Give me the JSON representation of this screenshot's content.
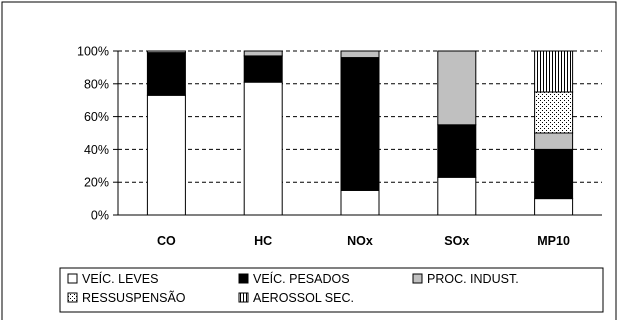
{
  "chart_data": {
    "type": "bar",
    "stacked": true,
    "percent": true,
    "categories": [
      "CO",
      "HC",
      "NOx",
      "SOx",
      "MP10"
    ],
    "series": [
      {
        "name": "VEÍC. LEVES",
        "values": [
          73,
          81,
          15,
          23,
          10
        ],
        "fill": "#ffffff",
        "pattern": "solid"
      },
      {
        "name": "VEÍC. PESADOS",
        "values": [
          26,
          16,
          81,
          32,
          30
        ],
        "fill": "#000000",
        "pattern": "solid"
      },
      {
        "name": "PROC. INDUST.",
        "values": [
          1,
          3,
          4,
          45,
          10
        ],
        "fill": "#c0c0c0",
        "pattern": "solid"
      },
      {
        "name": "RESSUSPENSÃO",
        "values": [
          0,
          0,
          0,
          0,
          25
        ],
        "fill": "#ffffff",
        "pattern": "dots"
      },
      {
        "name": "AEROSSOL SEC.",
        "values": [
          0,
          0,
          0,
          0,
          25
        ],
        "fill": "#ffffff",
        "pattern": "vertical-lines"
      }
    ],
    "yticks": [
      "0%",
      "20%",
      "40%",
      "60%",
      "80%",
      "100%"
    ],
    "ylim": [
      0,
      100
    ],
    "grid": "dashed horizontal",
    "legend_position": "bottom",
    "legend_rows": [
      [
        "VEÍC. LEVES",
        "VEÍC. PESADOS",
        "PROC. INDUST."
      ],
      [
        "RESSUSPENSÃO",
        "AEROSSOL SEC."
      ]
    ]
  }
}
